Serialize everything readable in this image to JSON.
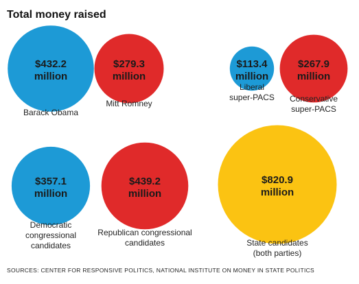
{
  "chart_data": {
    "type": "bubble",
    "title": "Total money raised",
    "unit": "million",
    "source": "SOURCES: CENTER FOR RESPONSIVE POLITICS, NATIONAL INSTITUTE ON MONEY IN STATE POLITICS",
    "colors": {
      "democratic": "#1d9ad6",
      "republican": "#e02a2a",
      "state": "#fbc312"
    },
    "bubbles": [
      {
        "id": "obama",
        "value": 432.2,
        "value_label": "$432.2",
        "label_lines": [
          "Barack Obama"
        ],
        "party": "democratic"
      },
      {
        "id": "romney",
        "value": 279.3,
        "value_label": "$279.3",
        "label_lines": [
          "Mitt Romney"
        ],
        "party": "republican"
      },
      {
        "id": "liberal-super-pacs",
        "value": 113.4,
        "value_label": "$113.4",
        "label_lines": [
          "Liberal",
          "super-PACS"
        ],
        "party": "democratic"
      },
      {
        "id": "conservative-super-pacs",
        "value": 267.9,
        "value_label": "$267.9",
        "label_lines": [
          "Conservative",
          "super-PACS"
        ],
        "party": "republican"
      },
      {
        "id": "democratic-congressional",
        "value": 357.1,
        "value_label": "$357.1",
        "label_lines": [
          "Democratic",
          "congressional",
          "candidates"
        ],
        "party": "democratic"
      },
      {
        "id": "republican-congressional",
        "value": 439.2,
        "value_label": "$439.2",
        "label_lines": [
          "Republican congressional",
          "candidates"
        ],
        "party": "republican"
      },
      {
        "id": "state-candidates",
        "value": 820.9,
        "value_label": "$820.9",
        "label_lines": [
          "State candidates",
          "(both parties)"
        ],
        "party": "state"
      }
    ]
  }
}
